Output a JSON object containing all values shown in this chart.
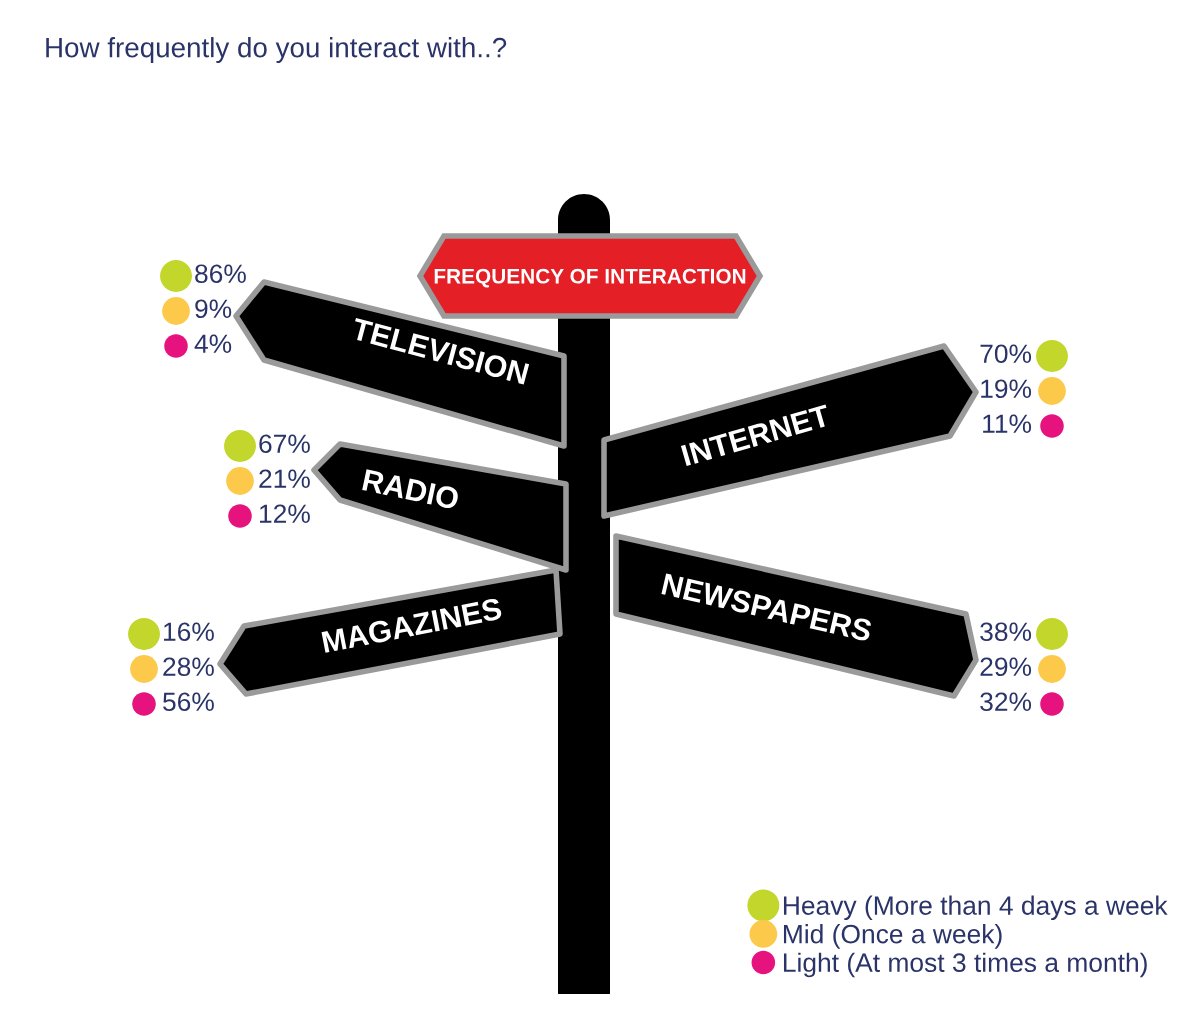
{
  "chart_data": {
    "type": "other",
    "title": "How frequently do you interact with..?",
    "annotations": [
      "FREQUENCY OF INTERACTION"
    ],
    "categories": [
      "TELEVISION",
      "INTERNET",
      "RADIO",
      "MAGAZINES",
      "NEWSPAPERS"
    ],
    "series": [
      {
        "name": "Heavy (More than 4 days a week",
        "color": "#c3d62b",
        "values": [
          86,
          70,
          67,
          16,
          38
        ],
        "value_labels": [
          "86%",
          "70%",
          "67%",
          "16%",
          "38%"
        ]
      },
      {
        "name": "Mid (Once a week)",
        "color": "#fdc94a",
        "values": [
          9,
          19,
          21,
          28,
          29
        ],
        "value_labels": [
          "9%",
          "19%",
          "21%",
          "28%",
          "29%"
        ]
      },
      {
        "name": "Light (At most 3 times a month)",
        "color": "#e6137f",
        "values": [
          4,
          11,
          12,
          56,
          32
        ],
        "value_labels": [
          "4%",
          "11%",
          "12%",
          "56%",
          "32%"
        ]
      }
    ],
    "legend": "bottom right"
  }
}
